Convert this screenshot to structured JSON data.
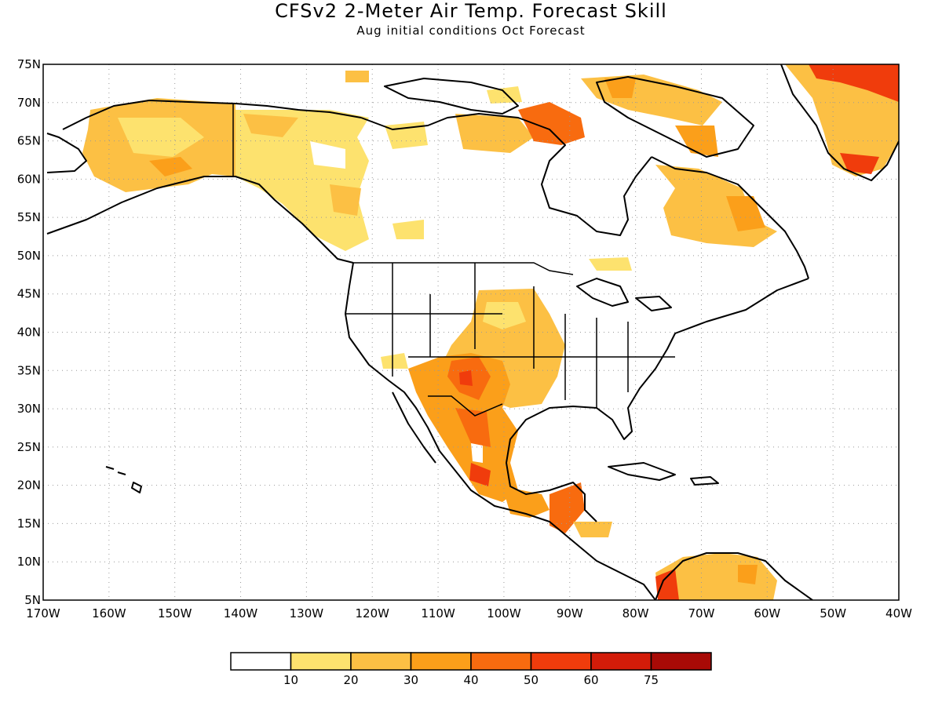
{
  "title": "CFSv2 2-Meter Air Temp. Forecast Skill",
  "subtitle": "Aug initial conditions  Oct Forecast",
  "map": {
    "lon_range": [
      -170,
      -40
    ],
    "lat_range": [
      5,
      75
    ],
    "lat_labels": [
      "75N",
      "70N",
      "65N",
      "60N",
      "55N",
      "50N",
      "45N",
      "40N",
      "35N",
      "30N",
      "25N",
      "20N",
      "15N",
      "10N",
      "5N"
    ],
    "lon_labels": [
      "170W",
      "160W",
      "150W",
      "140W",
      "130W",
      "120W",
      "110W",
      "100W",
      "90W",
      "80W",
      "70W",
      "60W",
      "50W",
      "40W"
    ],
    "gridlines": true
  },
  "legend": {
    "labels": [
      "10",
      "20",
      "30",
      "40",
      "50",
      "60",
      "75"
    ],
    "colors": [
      "#ffffff",
      "#fde26e",
      "#fcc044",
      "#fb9f1a",
      "#f86b0f",
      "#f03c0c",
      "#d31c09",
      "#a80a06"
    ]
  }
}
